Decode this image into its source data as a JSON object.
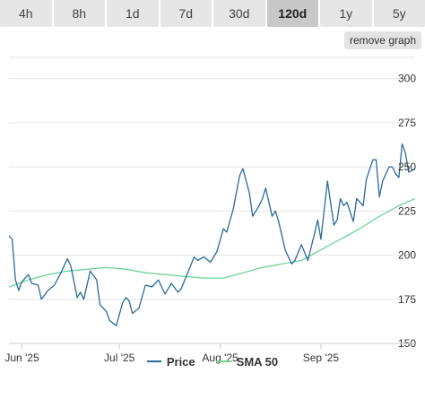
{
  "tabs": [
    {
      "label": "4h",
      "active": false
    },
    {
      "label": "8h",
      "active": false
    },
    {
      "label": "1d",
      "active": false
    },
    {
      "label": "7d",
      "active": false
    },
    {
      "label": "30d",
      "active": false
    },
    {
      "label": "120d",
      "active": true
    },
    {
      "label": "1y",
      "active": false
    },
    {
      "label": "5y",
      "active": false
    }
  ],
  "remove_graph_label": "remove graph",
  "colors": {
    "price": "#2b6a9c",
    "sma": "#6fd39a",
    "grid": "#e6e6e6"
  },
  "chart_data": {
    "type": "line",
    "x_ticks": [
      "Jun '25",
      "Jul '25",
      "Aug '25",
      "Sep '25"
    ],
    "y_ticks": [
      150,
      175,
      200,
      225,
      250,
      275,
      300
    ],
    "ylim": [
      150,
      312
    ],
    "xlim": [
      "2025-05-28",
      "2025-09-30"
    ],
    "grid": true,
    "legend_position": "bottom",
    "series": [
      {
        "name": "Price",
        "color": "#2b6a9c",
        "points": [
          [
            "2025-05-28",
            211
          ],
          [
            "2025-05-29",
            209
          ],
          [
            "2025-05-30",
            186
          ],
          [
            "2025-05-31",
            180
          ],
          [
            "2025-06-01",
            185
          ],
          [
            "2025-06-03",
            189
          ],
          [
            "2025-06-04",
            184
          ],
          [
            "2025-06-06",
            183
          ],
          [
            "2025-06-07",
            175
          ],
          [
            "2025-06-09",
            180
          ],
          [
            "2025-06-11",
            183
          ],
          [
            "2025-06-13",
            190
          ],
          [
            "2025-06-15",
            198
          ],
          [
            "2025-06-16",
            194
          ],
          [
            "2025-06-18",
            176
          ],
          [
            "2025-06-19",
            179
          ],
          [
            "2025-06-20",
            175
          ],
          [
            "2025-06-22",
            191
          ],
          [
            "2025-06-24",
            186
          ],
          [
            "2025-06-25",
            172
          ],
          [
            "2025-06-27",
            168
          ],
          [
            "2025-06-28",
            163
          ],
          [
            "2025-06-30",
            160
          ],
          [
            "2025-07-02",
            173
          ],
          [
            "2025-07-03",
            176
          ],
          [
            "2025-07-04",
            174
          ],
          [
            "2025-07-05",
            167
          ],
          [
            "2025-07-07",
            170
          ],
          [
            "2025-07-09",
            183
          ],
          [
            "2025-07-11",
            182
          ],
          [
            "2025-07-13",
            186
          ],
          [
            "2025-07-15",
            178
          ],
          [
            "2025-07-17",
            184
          ],
          [
            "2025-07-19",
            179
          ],
          [
            "2025-07-20",
            181
          ],
          [
            "2025-07-22",
            190
          ],
          [
            "2025-07-24",
            199
          ],
          [
            "2025-07-25",
            197
          ],
          [
            "2025-07-27",
            199
          ],
          [
            "2025-07-29",
            196
          ],
          [
            "2025-07-31",
            202
          ],
          [
            "2025-08-02",
            215
          ],
          [
            "2025-08-03",
            213
          ],
          [
            "2025-08-05",
            226
          ],
          [
            "2025-08-07",
            245
          ],
          [
            "2025-08-08",
            249
          ],
          [
            "2025-08-10",
            235
          ],
          [
            "2025-08-11",
            222
          ],
          [
            "2025-08-13",
            228
          ],
          [
            "2025-08-14",
            232
          ],
          [
            "2025-08-15",
            238
          ],
          [
            "2025-08-17",
            222
          ],
          [
            "2025-08-18",
            225
          ],
          [
            "2025-08-19",
            219
          ],
          [
            "2025-08-21",
            203
          ],
          [
            "2025-08-23",
            195
          ],
          [
            "2025-08-24",
            197
          ],
          [
            "2025-08-26",
            206
          ],
          [
            "2025-08-28",
            197
          ],
          [
            "2025-08-30",
            212
          ],
          [
            "2025-08-31",
            220
          ],
          [
            "2025-09-01",
            209
          ],
          [
            "2025-09-03",
            242
          ],
          [
            "2025-09-05",
            217
          ],
          [
            "2025-09-06",
            220
          ],
          [
            "2025-09-07",
            232
          ],
          [
            "2025-09-08",
            228
          ],
          [
            "2025-09-09",
            230
          ],
          [
            "2025-09-11",
            219
          ],
          [
            "2025-09-12",
            232
          ],
          [
            "2025-09-14",
            228
          ],
          [
            "2025-09-15",
            243
          ],
          [
            "2025-09-17",
            254
          ],
          [
            "2025-09-18",
            254
          ],
          [
            "2025-09-19",
            233
          ],
          [
            "2025-09-20",
            242
          ],
          [
            "2025-09-22",
            250
          ],
          [
            "2025-09-23",
            250
          ],
          [
            "2025-09-24",
            246
          ],
          [
            "2025-09-25",
            244
          ],
          [
            "2025-09-26",
            263
          ],
          [
            "2025-09-27",
            258
          ],
          [
            "2025-09-28",
            247
          ],
          [
            "2025-09-30",
            249
          ]
        ]
      },
      {
        "name": "SMA 50",
        "color": "#6fd39a",
        "points": [
          [
            "2025-05-28",
            182
          ],
          [
            "2025-06-03",
            186
          ],
          [
            "2025-06-09",
            189
          ],
          [
            "2025-06-15",
            191
          ],
          [
            "2025-06-21",
            192
          ],
          [
            "2025-06-27",
            193
          ],
          [
            "2025-07-03",
            192
          ],
          [
            "2025-07-09",
            190
          ],
          [
            "2025-07-15",
            189
          ],
          [
            "2025-07-21",
            188
          ],
          [
            "2025-07-27",
            187
          ],
          [
            "2025-08-02",
            187
          ],
          [
            "2025-08-08",
            190
          ],
          [
            "2025-08-14",
            193
          ],
          [
            "2025-08-20",
            195
          ],
          [
            "2025-08-26",
            197
          ],
          [
            "2025-09-01",
            203
          ],
          [
            "2025-09-07",
            209
          ],
          [
            "2025-09-13",
            215
          ],
          [
            "2025-09-19",
            222
          ],
          [
            "2025-09-25",
            228
          ],
          [
            "2025-09-30",
            232
          ]
        ]
      }
    ]
  }
}
